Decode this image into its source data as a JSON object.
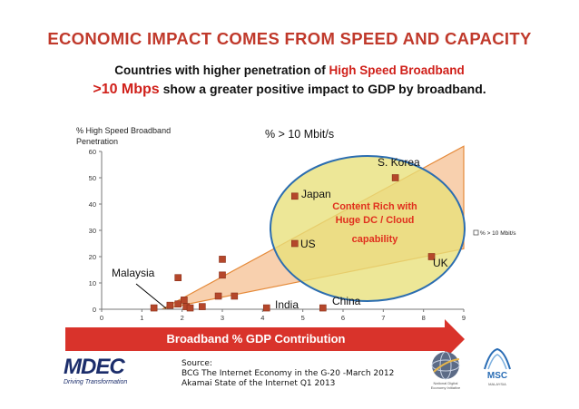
{
  "slide": {
    "title": "ECONOMIC IMPACT COMES FROM SPEED AND CAPACITY",
    "subtitle1_a": "Countries with higher penetration of ",
    "subtitle1_b": "High Speed Broadband",
    "subtitle2_a": ">10 Mbps",
    "subtitle2_b": " show a greater positive impact to GDP by broadband."
  },
  "arrow": {
    "label": "Broadband % GDP Contribution"
  },
  "callout": {
    "line1": "Content Rich with",
    "line2": "Huge DC / Cloud",
    "line3": "capability"
  },
  "source": {
    "line1": "Source:",
    "line2": "BCG The Internet Economy in the G-20 -March 2012",
    "line3": "Akamai State of the Internet Q1 2013"
  },
  "logos": {
    "mdec": "MDEC",
    "mdec_tagline": "Driving Transformation",
    "msc": "MSC",
    "msc_sub": "MALAYSIA",
    "nita_sub": "National Digital Economy Initiative"
  },
  "colors": {
    "title_red": "#c0392b",
    "marker": "#b5472b",
    "triangle_fill": "#f7c8a0",
    "triangle_stroke": "#e58a3a",
    "ellipse_fill": "#e8e07a",
    "ellipse_stroke": "#2b6db0",
    "arrow": "#d9332b",
    "callout_text": "#e0301e"
  },
  "chart_data": {
    "type": "scatter",
    "title": "% > 10 Mbit/s",
    "ylabel_line1": "% High Speed Broadband",
    "ylabel_line2": "Penetration",
    "xlim": [
      0,
      9
    ],
    "ylim": [
      0,
      60
    ],
    "xticks": [
      "0",
      "1",
      "2",
      "3",
      "4",
      "5",
      "6",
      "7",
      "8",
      "9"
    ],
    "yticks": [
      "0",
      "10",
      "20",
      "30",
      "40",
      "50",
      "60"
    ],
    "legend": {
      "label": "% > 10 Mbit/s",
      "position": "right"
    },
    "grid": false,
    "series": [
      {
        "name": "% > 10 Mbit/s",
        "points": [
          {
            "x": 1.3,
            "y": 0.5,
            "label": ""
          },
          {
            "x": 1.7,
            "y": 1.5,
            "label": ""
          },
          {
            "x": 1.9,
            "y": 12,
            "label": "Malaysia"
          },
          {
            "x": 1.9,
            "y": 2,
            "label": ""
          },
          {
            "x": 2.05,
            "y": 3.5,
            "label": ""
          },
          {
            "x": 2.1,
            "y": 1,
            "label": ""
          },
          {
            "x": 2.2,
            "y": 0.5,
            "label": ""
          },
          {
            "x": 2.5,
            "y": 1,
            "label": ""
          },
          {
            "x": 2.9,
            "y": 5,
            "label": ""
          },
          {
            "x": 3.0,
            "y": 13,
            "label": ""
          },
          {
            "x": 3.0,
            "y": 19,
            "label": ""
          },
          {
            "x": 3.3,
            "y": 5,
            "label": ""
          },
          {
            "x": 4.1,
            "y": 0.5,
            "label": "India"
          },
          {
            "x": 4.8,
            "y": 43,
            "label": "Japan"
          },
          {
            "x": 4.8,
            "y": 25,
            "label": "US"
          },
          {
            "x": 5.5,
            "y": 0.5,
            "label": "China"
          },
          {
            "x": 7.3,
            "y": 50,
            "label": "S. Korea"
          },
          {
            "x": 8.2,
            "y": 20,
            "label": "UK"
          }
        ]
      }
    ]
  }
}
